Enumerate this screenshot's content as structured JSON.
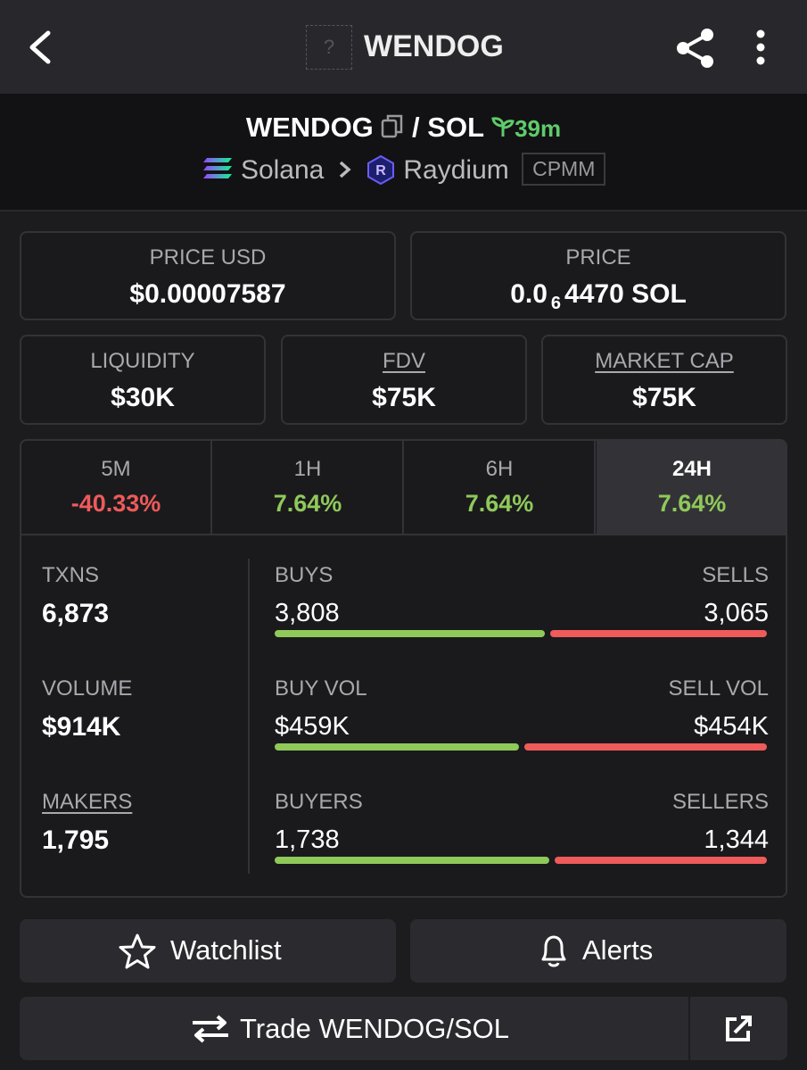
{
  "header": {
    "icon_placeholder": "?",
    "title": "WENDOG"
  },
  "pair": {
    "base": "WENDOG",
    "separator": "/",
    "quote": "SOL",
    "age": "39m",
    "chain": "Solana",
    "dex": "Raydium",
    "pool_type": "CPMM"
  },
  "stats": {
    "price_usd": {
      "label": "PRICE USD",
      "value": "$0.00007587"
    },
    "price": {
      "label": "PRICE",
      "prefix": "0.0",
      "zeros": "6",
      "rest": "4470 SOL"
    },
    "liquidity": {
      "label": "LIQUIDITY",
      "value": "$30K"
    },
    "fdv": {
      "label": "FDV",
      "value": "$75K"
    },
    "market_cap": {
      "label": "MARKET CAP",
      "value": "$75K"
    }
  },
  "timeframes": [
    {
      "label": "5M",
      "change": "-40.33%"
    },
    {
      "label": "1H",
      "change": "7.64%"
    },
    {
      "label": "6H",
      "change": "7.64%"
    },
    {
      "label": "24H",
      "change": "7.64%"
    }
  ],
  "selected_timeframe": 3,
  "activity": {
    "txns": {
      "label": "TXNS",
      "value": "6,873"
    },
    "volume": {
      "label": "VOLUME",
      "value": "$914K"
    },
    "makers": {
      "label": "MAKERS",
      "value": "1,795"
    },
    "rows": [
      {
        "buy_label": "BUYS",
        "sell_label": "SELLS",
        "buy": {
          "value": 3808,
          "label": "3,808"
        },
        "sell": {
          "value": 3065,
          "label": "3,065"
        }
      },
      {
        "buy_label": "BUY VOL",
        "sell_label": "SELL VOL",
        "buy": {
          "value": 459000,
          "label": "$459K"
        },
        "sell": {
          "value": 454000,
          "label": "$454K"
        }
      },
      {
        "buy_label": "BUYERS",
        "sell_label": "SELLERS",
        "buy": {
          "value": 1738,
          "label": "1,738"
        },
        "sell": {
          "value": 1344,
          "label": "1,344"
        }
      }
    ]
  },
  "buttons": {
    "watchlist": "Watchlist",
    "alerts": "Alerts",
    "trade": "Trade WENDOG/SOL"
  }
}
